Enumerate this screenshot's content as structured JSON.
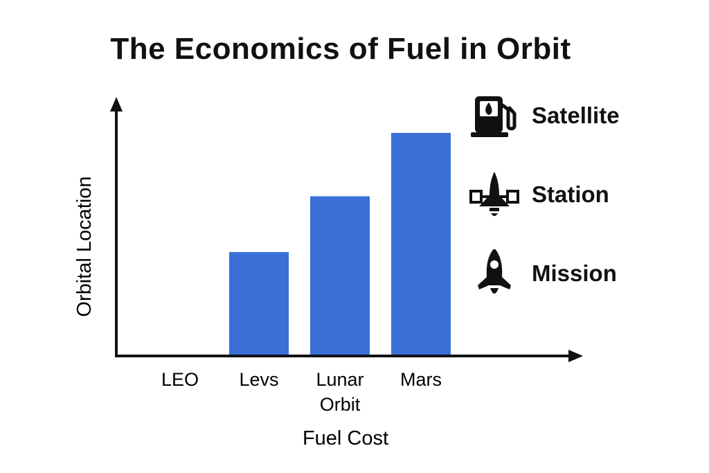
{
  "chart_data": {
    "type": "bar",
    "title": "The Economics of Fuel in Orbit",
    "xlabel": "Fuel Cost",
    "ylabel": "Orbital Location",
    "categories": [
      "LEO",
      "Levs",
      "Lunar Orbit",
      "Mars"
    ],
    "category_lines": [
      [
        "LEO"
      ],
      [
        "Levs"
      ],
      [
        "Lunar",
        "Orbit"
      ],
      [
        "Mars"
      ]
    ],
    "values": [
      0,
      41,
      63,
      88
    ],
    "ylim": [
      0,
      100
    ],
    "bar_color": "#3a6fd8",
    "axis_color": "#111111",
    "grid": false,
    "legend": {
      "placement": "right",
      "items": [
        {
          "label": "Satellite",
          "icon": "fuel-pump-icon"
        },
        {
          "label": "Station",
          "icon": "space-shuttle-icon"
        },
        {
          "label": "Mission",
          "icon": "rocket-icon"
        }
      ]
    }
  }
}
